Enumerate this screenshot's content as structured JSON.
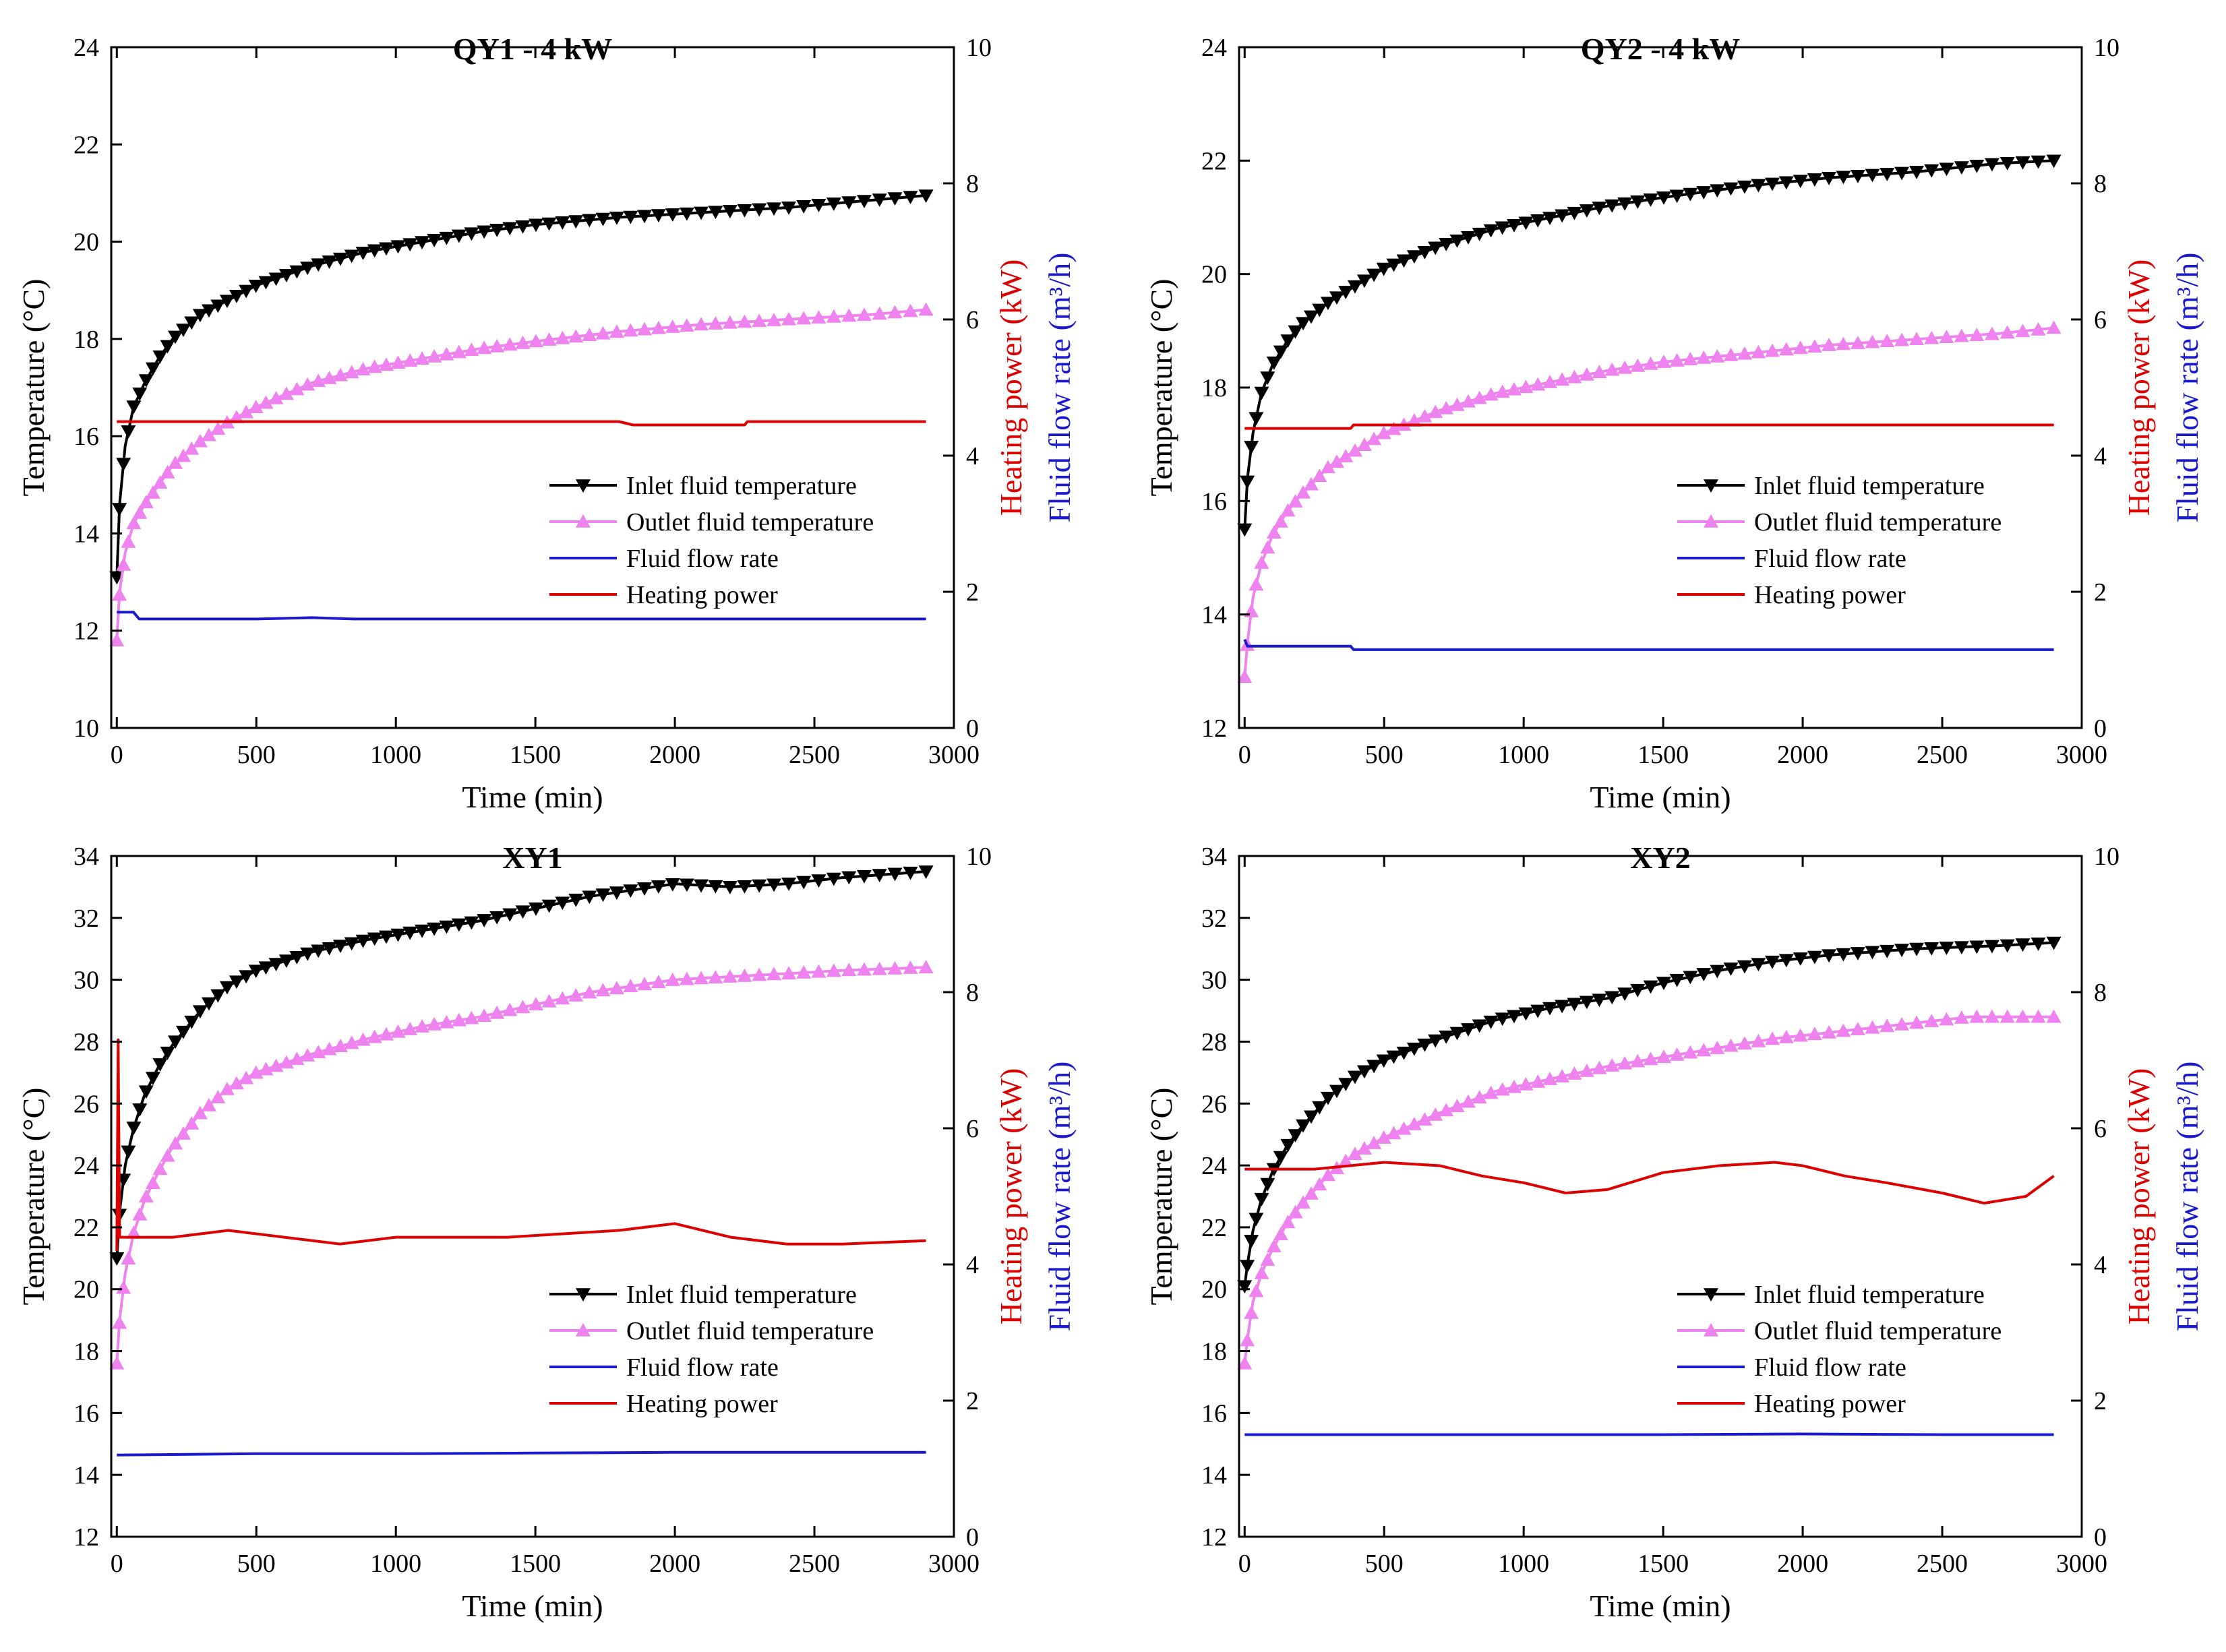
{
  "chart_data": [
    {
      "type": "line",
      "title": "QY1 - 4 kW",
      "xlabel": "Time (min)",
      "ylabel": "Temperature (°C)",
      "y2label_power": "Heating power (kW)",
      "y2label_flow": "Fluid flow rate (m³/h)",
      "xlim": [
        -20,
        3000
      ],
      "ylim": [
        10,
        24
      ],
      "y2lim": [
        0,
        10
      ],
      "xticks": [
        "0",
        "500",
        "1000",
        "1500",
        "2000",
        "2500",
        "3000"
      ],
      "yticks": [
        "10",
        "12",
        "14",
        "16",
        "18",
        "20",
        "22",
        "24"
      ],
      "y2ticks": [
        "0",
        "2",
        "4",
        "6",
        "8",
        "10"
      ],
      "legend": [
        "Inlet fluid temperature",
        "Outlet fluid temperature",
        "Fluid flow rate",
        "Heating power"
      ],
      "legend_position": "lower-right",
      "series": [
        {
          "name": "Inlet fluid temperature",
          "axis": "left",
          "color": "#000000",
          "marker": "triangle-down",
          "x": [
            0,
            10,
            30,
            60,
            100,
            150,
            200,
            300,
            400,
            500,
            700,
            900,
            1100,
            1300,
            1500,
            1800,
            2100,
            2400,
            2700,
            2900
          ],
          "y": [
            13.1,
            14.6,
            15.8,
            16.6,
            17.1,
            17.6,
            18.0,
            18.5,
            18.8,
            19.1,
            19.5,
            19.8,
            20.0,
            20.2,
            20.35,
            20.5,
            20.6,
            20.7,
            20.85,
            20.95
          ]
        },
        {
          "name": "Outlet fluid temperature",
          "axis": "left",
          "color": "#ee82ee",
          "marker": "triangle-up",
          "x": [
            0,
            10,
            30,
            60,
            100,
            150,
            200,
            300,
            400,
            500,
            700,
            900,
            1100,
            1300,
            1500,
            1800,
            2100,
            2400,
            2700,
            2900
          ],
          "y": [
            11.8,
            12.8,
            13.6,
            14.2,
            14.6,
            15.0,
            15.4,
            15.9,
            16.3,
            16.6,
            17.1,
            17.4,
            17.6,
            17.8,
            17.95,
            18.15,
            18.3,
            18.4,
            18.5,
            18.6
          ]
        },
        {
          "name": "Fluid flow rate",
          "axis": "right",
          "color": "#1a1acc",
          "x": [
            0,
            60,
            80,
            500,
            700,
            850,
            1500,
            2000,
            2500,
            2900
          ],
          "y": [
            1.7,
            1.7,
            1.6,
            1.6,
            1.62,
            1.6,
            1.6,
            1.6,
            1.6,
            1.6
          ]
        },
        {
          "name": "Heating power",
          "axis": "right",
          "color": "#dd0000",
          "x": [
            0,
            500,
            1000,
            1500,
            1800,
            1850,
            2250,
            2260,
            2900
          ],
          "y": [
            4.5,
            4.5,
            4.5,
            4.5,
            4.5,
            4.45,
            4.45,
            4.5,
            4.5
          ]
        }
      ]
    },
    {
      "type": "line",
      "title": "QY2 - 4 kW",
      "xlabel": "Time (min)",
      "ylabel": "Temperature (°C)",
      "y2label_power": "Heating power (kW)",
      "y2label_flow": "Fluid flow rate (m³/h)",
      "xlim": [
        -20,
        3000
      ],
      "ylim": [
        12,
        24
      ],
      "y2lim": [
        0,
        10
      ],
      "xticks": [
        "0",
        "500",
        "1000",
        "1500",
        "2000",
        "2500",
        "3000"
      ],
      "yticks": [
        "12",
        "14",
        "16",
        "18",
        "20",
        "22",
        "24"
      ],
      "y2ticks": [
        "0",
        "2",
        "4",
        "6",
        "8",
        "10"
      ],
      "legend": [
        "Inlet fluid temperature",
        "Outlet fluid temperature",
        "Fluid flow rate",
        "Heating power"
      ],
      "legend_position": "lower-right",
      "series": [
        {
          "name": "Inlet fluid temperature",
          "axis": "left",
          "color": "#000000",
          "marker": "triangle-down",
          "x": [
            0,
            10,
            30,
            60,
            100,
            150,
            200,
            300,
            400,
            500,
            700,
            900,
            1100,
            1300,
            1500,
            1800,
            2100,
            2400,
            2700,
            2900
          ],
          "y": [
            15.5,
            16.4,
            17.2,
            17.9,
            18.4,
            18.8,
            19.1,
            19.5,
            19.8,
            20.1,
            20.5,
            20.8,
            21.0,
            21.2,
            21.35,
            21.55,
            21.7,
            21.8,
            21.95,
            22.0
          ]
        },
        {
          "name": "Outlet fluid temperature",
          "axis": "left",
          "color": "#ee82ee",
          "marker": "triangle-up",
          "x": [
            0,
            10,
            30,
            60,
            100,
            150,
            200,
            300,
            400,
            500,
            700,
            900,
            1100,
            1300,
            1500,
            1800,
            2100,
            2400,
            2700,
            2900
          ],
          "y": [
            12.9,
            13.5,
            14.3,
            14.9,
            15.4,
            15.8,
            16.1,
            16.6,
            16.9,
            17.2,
            17.6,
            17.9,
            18.1,
            18.3,
            18.45,
            18.6,
            18.75,
            18.85,
            18.95,
            19.05
          ]
        },
        {
          "name": "Fluid flow rate",
          "axis": "right",
          "color": "#1a1acc",
          "x": [
            0,
            10,
            20,
            380,
            390,
            1000,
            2000,
            2900
          ],
          "y": [
            1.3,
            1.2,
            1.2,
            1.2,
            1.15,
            1.15,
            1.15,
            1.15
          ]
        },
        {
          "name": "Heating power",
          "axis": "right",
          "color": "#dd0000",
          "x": [
            0,
            380,
            390,
            1000,
            1500,
            2000,
            2500,
            2900
          ],
          "y": [
            4.4,
            4.4,
            4.45,
            4.45,
            4.45,
            4.45,
            4.45,
            4.45
          ]
        }
      ]
    },
    {
      "type": "line",
      "title": "XY1",
      "xlabel": "Time (min)",
      "ylabel": "Temperature (°C)",
      "y2label_power": "Heating power (kW)",
      "y2label_flow": "Fluid flow rate (m³/h)",
      "xlim": [
        -20,
        3000
      ],
      "ylim": [
        12,
        34
      ],
      "y2lim": [
        0,
        10
      ],
      "xticks": [
        "0",
        "500",
        "1000",
        "1500",
        "2000",
        "2500",
        "3000"
      ],
      "yticks": [
        "12",
        "14",
        "16",
        "18",
        "20",
        "22",
        "24",
        "26",
        "28",
        "30",
        "32",
        "34"
      ],
      "y2ticks": [
        "0",
        "2",
        "4",
        "6",
        "8",
        "10"
      ],
      "legend": [
        "Inlet fluid temperature",
        "Outlet fluid temperature",
        "Fluid flow rate",
        "Heating power"
      ],
      "legend_position": "lower-right",
      "series": [
        {
          "name": "Inlet fluid temperature",
          "axis": "left",
          "color": "#000000",
          "marker": "triangle-down",
          "x": [
            0,
            10,
            30,
            60,
            100,
            150,
            200,
            300,
            400,
            500,
            700,
            900,
            1100,
            1300,
            1500,
            1700,
            2000,
            2200,
            2400,
            2600,
            2900
          ],
          "y": [
            21.0,
            22.5,
            24.0,
            25.2,
            26.3,
            27.2,
            27.9,
            29.0,
            29.8,
            30.3,
            30.9,
            31.3,
            31.6,
            31.9,
            32.3,
            32.7,
            33.1,
            33.0,
            33.1,
            33.3,
            33.5
          ]
        },
        {
          "name": "Outlet fluid temperature",
          "axis": "left",
          "color": "#ee82ee",
          "marker": "triangle-up",
          "x": [
            0,
            10,
            30,
            60,
            100,
            150,
            200,
            300,
            400,
            500,
            700,
            900,
            1100,
            1300,
            1500,
            1700,
            2000,
            2200,
            2400,
            2600,
            2900
          ],
          "y": [
            17.6,
            19.0,
            20.5,
            21.8,
            22.9,
            23.8,
            24.6,
            25.7,
            26.5,
            27.0,
            27.6,
            28.1,
            28.5,
            28.8,
            29.2,
            29.6,
            30.0,
            30.1,
            30.2,
            30.3,
            30.4
          ]
        },
        {
          "name": "Fluid flow rate",
          "axis": "right",
          "color": "#1a1acc",
          "x": [
            0,
            500,
            1000,
            1500,
            2000,
            2500,
            2900
          ],
          "y": [
            1.2,
            1.22,
            1.22,
            1.23,
            1.24,
            1.24,
            1.24
          ]
        },
        {
          "name": "Heating power",
          "axis": "right",
          "color": "#dd0000",
          "x": [
            0,
            5,
            10,
            30,
            200,
            400,
            600,
            800,
            1000,
            1200,
            1400,
            1600,
            1800,
            2000,
            2200,
            2400,
            2600,
            2900
          ],
          "y": [
            4.2,
            7.3,
            4.4,
            4.4,
            4.4,
            4.5,
            4.4,
            4.3,
            4.4,
            4.4,
            4.4,
            4.45,
            4.5,
            4.6,
            4.4,
            4.3,
            4.3,
            4.35
          ]
        }
      ]
    },
    {
      "type": "line",
      "title": "XY2",
      "xlabel": "Time (min)",
      "ylabel": "Temperature (°C)",
      "y2label_power": "Heating power (kW)",
      "y2label_flow": "Fluid flow rate (m³/h)",
      "xlim": [
        -20,
        3000
      ],
      "ylim": [
        12,
        34
      ],
      "y2lim": [
        0,
        10
      ],
      "xticks": [
        "0",
        "500",
        "1000",
        "1500",
        "2000",
        "2500",
        "3000"
      ],
      "yticks": [
        "12",
        "14",
        "16",
        "18",
        "20",
        "22",
        "24",
        "26",
        "28",
        "30",
        "32",
        "34"
      ],
      "y2ticks": [
        "0",
        "2",
        "4",
        "6",
        "8",
        "10"
      ],
      "legend": [
        "Inlet fluid temperature",
        "Outlet fluid temperature",
        "Fluid flow rate",
        "Heating power"
      ],
      "legend_position": "lower-right",
      "series": [
        {
          "name": "Inlet fluid temperature",
          "axis": "left",
          "color": "#000000",
          "marker": "triangle-down",
          "x": [
            0,
            10,
            30,
            60,
            100,
            150,
            200,
            300,
            400,
            500,
            700,
            900,
            1100,
            1300,
            1500,
            1700,
            1900,
            2100,
            2400,
            2700,
            2900
          ],
          "y": [
            20.1,
            20.8,
            21.9,
            22.9,
            23.8,
            24.6,
            25.2,
            26.2,
            26.9,
            27.4,
            28.1,
            28.7,
            29.1,
            29.4,
            29.9,
            30.3,
            30.6,
            30.8,
            31.0,
            31.1,
            31.2
          ]
        },
        {
          "name": "Outlet fluid temperature",
          "axis": "left",
          "color": "#ee82ee",
          "marker": "triangle-up",
          "x": [
            0,
            10,
            30,
            60,
            100,
            150,
            200,
            300,
            400,
            500,
            700,
            900,
            1100,
            1300,
            1500,
            1700,
            1900,
            2100,
            2400,
            2600,
            2900
          ],
          "y": [
            17.6,
            18.4,
            19.6,
            20.5,
            21.3,
            22.1,
            22.7,
            23.7,
            24.4,
            24.9,
            25.7,
            26.4,
            26.8,
            27.2,
            27.5,
            27.8,
            28.1,
            28.3,
            28.6,
            28.8,
            28.8
          ]
        },
        {
          "name": "Fluid flow rate",
          "axis": "right",
          "color": "#1a1acc",
          "x": [
            0,
            500,
            1000,
            1500,
            2000,
            2500,
            2900
          ],
          "y": [
            1.5,
            1.5,
            1.5,
            1.5,
            1.51,
            1.5,
            1.5
          ]
        },
        {
          "name": "Heating power",
          "axis": "right",
          "color": "#dd0000",
          "x": [
            0,
            250,
            500,
            700,
            850,
            1000,
            1150,
            1300,
            1500,
            1700,
            1900,
            2000,
            2150,
            2300,
            2500,
            2650,
            2800,
            2900
          ],
          "y": [
            5.4,
            5.4,
            5.5,
            5.45,
            5.3,
            5.2,
            5.05,
            5.1,
            5.35,
            5.45,
            5.5,
            5.45,
            5.3,
            5.2,
            5.05,
            4.9,
            5.0,
            5.3
          ]
        }
      ]
    }
  ]
}
